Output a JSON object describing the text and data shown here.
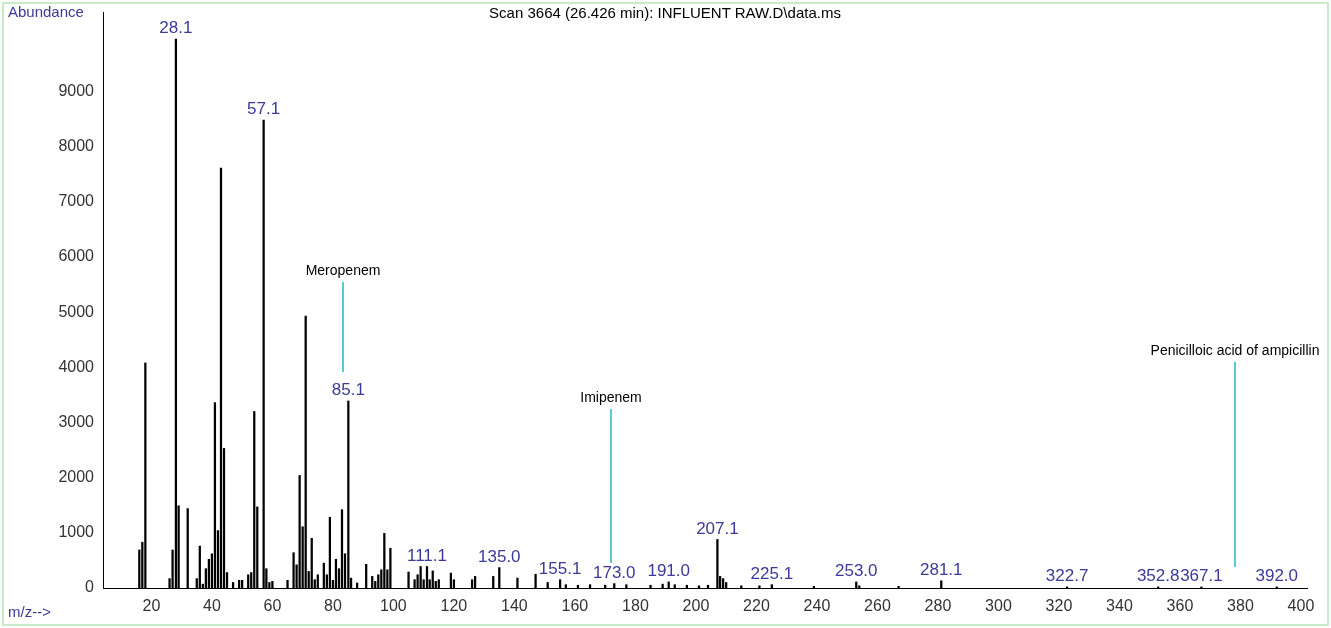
{
  "chart_data": {
    "type": "bar",
    "title": "Scan 3664 (26.426 min): INFLUENT RAW.D\\data.ms",
    "xlabel": "m/z-->",
    "ylabel": "Abundance",
    "color": "#000000",
    "x": [
      16,
      17,
      18,
      26,
      27,
      28.1,
      29,
      32,
      35,
      36,
      37,
      38,
      39,
      40,
      41,
      42,
      43,
      44,
      45,
      47,
      49,
      50,
      52,
      53,
      54,
      55,
      57.1,
      58,
      59,
      60,
      65,
      67,
      68,
      69,
      70,
      71,
      72,
      73,
      74,
      75,
      77,
      78,
      79,
      80,
      81,
      82,
      83,
      84,
      85.1,
      86,
      88,
      91,
      93,
      94,
      95,
      96,
      97,
      98,
      99,
      105,
      107,
      108,
      109,
      110,
      111.1,
      112,
      113,
      114,
      115,
      119,
      120,
      126,
      127,
      133,
      135.0,
      141,
      147,
      151,
      155.1,
      157,
      161,
      165,
      170,
      173.0,
      177,
      185,
      189,
      191.0,
      193,
      197,
      201,
      204,
      207.1,
      208,
      209,
      210,
      215,
      221,
      225.1,
      239,
      253.0,
      254,
      267,
      281.1,
      322.7,
      352.8,
      367.1,
      392.0
    ],
    "values": [
      690,
      830,
      4080,
      170,
      690,
      9950,
      1490,
      1440,
      170,
      760,
      70,
      350,
      520,
      620,
      3360,
      1040,
      7610,
      2530,
      280,
      100,
      140,
      140,
      240,
      280,
      3200,
      1470,
      8480,
      350,
      100,
      120,
      140,
      640,
      420,
      2040,
      1110,
      4930,
      300,
      900,
      150,
      240,
      450,
      240,
      1280,
      140,
      520,
      350,
      1420,
      620,
      3390,
      180,
      90,
      430,
      210,
      120,
      240,
      330,
      990,
      330,
      720,
      290,
      150,
      240,
      390,
      150,
      390,
      150,
      310,
      120,
      150,
      270,
      150,
      150,
      210,
      210,
      370,
      180,
      250,
      100,
      150,
      60,
      50,
      60,
      50,
      80,
      60,
      50,
      70,
      110,
      60,
      50,
      40,
      50,
      880,
      210,
      170,
      100,
      40,
      40,
      60,
      30,
      110,
      40,
      30,
      130,
      20,
      20,
      20,
      20
    ],
    "annotations": [
      {
        "text": "28.1",
        "x": 28.1,
        "y": 9950
      },
      {
        "text": "57.1",
        "x": 57.1,
        "y": 8480
      },
      {
        "text": "85.1",
        "x": 85.1,
        "y": 3390
      },
      {
        "text": "111.1",
        "x": 111.1,
        "y": 390
      },
      {
        "text": "135.0",
        "x": 135.0,
        "y": 370
      },
      {
        "text": "155.1",
        "x": 155.1,
        "y": 150
      },
      {
        "text": "173.0",
        "x": 173.0,
        "y": 80
      },
      {
        "text": "191.0",
        "x": 191.0,
        "y": 110
      },
      {
        "text": "207.1",
        "x": 207.1,
        "y": 880
      },
      {
        "text": "225.1",
        "x": 225.1,
        "y": 60
      },
      {
        "text": "253.0",
        "x": 253.0,
        "y": 110
      },
      {
        "text": "281.1",
        "x": 281.1,
        "y": 130
      },
      {
        "text": "322.7",
        "x": 322.7,
        "y": 20
      },
      {
        "text": "352.8",
        "x": 352.8,
        "y": 20
      },
      {
        "text": "367.1",
        "x": 367.1,
        "y": 20
      },
      {
        "text": "392.0",
        "x": 392.0,
        "y": 20
      },
      "Meropenem",
      "Imipenem",
      "Penicilloic acid of ampicillin"
    ],
    "xlim": [
      4,
      402
    ],
    "xticks": [
      20,
      40,
      60,
      80,
      100,
      120,
      140,
      160,
      180,
      200,
      220,
      240,
      260,
      280,
      300,
      320,
      340,
      360,
      380,
      400
    ],
    "ylim": [
      0,
      10430
    ],
    "yticks": [
      0,
      1000,
      2000,
      3000,
      4000,
      5000,
      6000,
      7000,
      8000,
      9000
    ]
  }
}
